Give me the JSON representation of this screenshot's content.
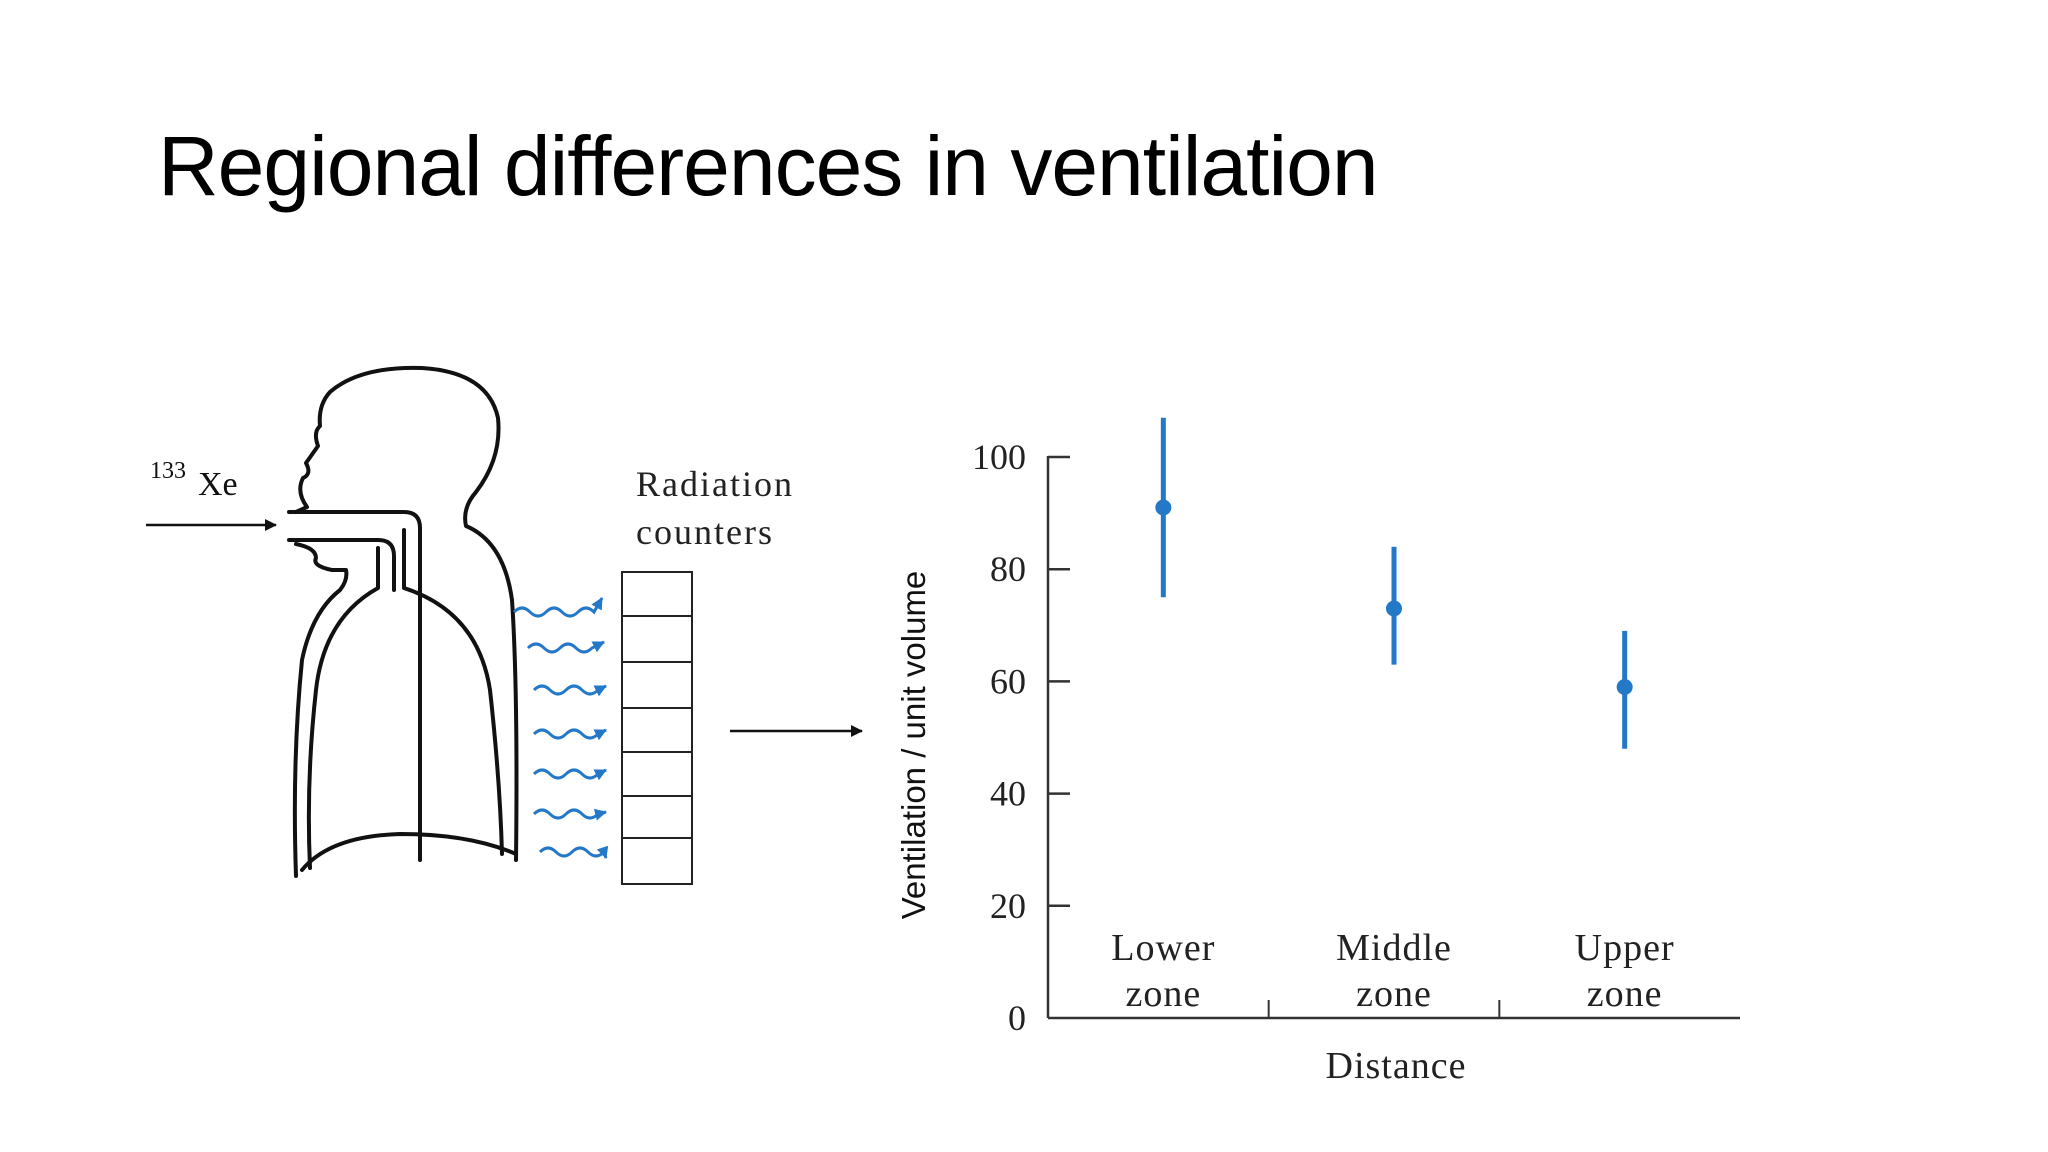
{
  "slide": {
    "title": "Regional differences in ventilation"
  },
  "diagram": {
    "isotope_mass": "133",
    "isotope_symbol": "Xe",
    "detector_label_line1": "Radiation",
    "detector_label_line2": "counters",
    "colors": {
      "radiation": "#2478c8",
      "outline": "#111111"
    },
    "icons": [
      "head-torso-silhouette",
      "radiation-wave-arrow",
      "detector-stack"
    ]
  },
  "chart_data": {
    "type": "scatter",
    "ylabel": "Ventilation / unit volume",
    "xlabel": "Distance",
    "yticks": [
      0,
      20,
      40,
      60,
      80,
      100
    ],
    "ylim": [
      0,
      100
    ],
    "categories": [
      {
        "line1": "Lower",
        "line2": "zone"
      },
      {
        "line1": "Middle",
        "line2": "zone"
      },
      {
        "line1": "Upper",
        "line2": "zone"
      }
    ],
    "points": [
      {
        "zone": "Lower zone",
        "value": 91,
        "low": 75,
        "high": 107
      },
      {
        "zone": "Middle zone",
        "value": 73,
        "low": 63,
        "high": 84
      },
      {
        "zone": "Upper zone",
        "value": 59,
        "low": 48,
        "high": 69
      }
    ],
    "marker_color": "#2478c8",
    "grid": false
  }
}
